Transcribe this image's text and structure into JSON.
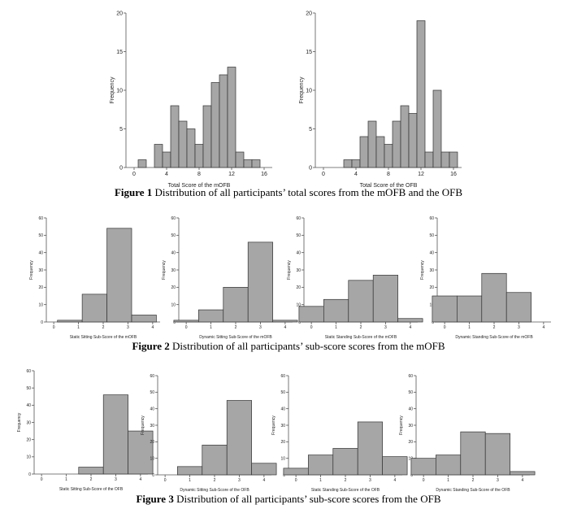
{
  "captions": {
    "fig1": {
      "label": "Figure 1",
      "text": " Distribution of all participants’ total scores from the mOFB and the OFB"
    },
    "fig2": {
      "label": "Figure 2",
      "text": " Distribution of all participants’ sub-score scores from the mOFB"
    },
    "fig3": {
      "label": "Figure 3",
      "text": " Distribution of all participants’ sub-score scores from the OFB"
    }
  },
  "colors": {
    "bar_fill": "#a6a6a6",
    "bar_stroke": "#333333",
    "axis": "#555555"
  },
  "chart_data": [
    {
      "type": "bar",
      "xlabel": "Total Score of the mOFB",
      "ylabel": "Frequency",
      "xlim": [
        -1,
        17
      ],
      "ylim": [
        0,
        20
      ],
      "xticks": [
        0,
        4,
        8,
        12,
        16
      ],
      "yticks": [
        0,
        5,
        10,
        15,
        20
      ],
      "bin_width": 1,
      "bins": [
        1,
        2,
        3,
        4,
        5,
        6,
        7,
        8,
        9,
        10,
        11,
        12,
        13,
        14,
        15
      ],
      "values": [
        1,
        0,
        3,
        2,
        8,
        6,
        5,
        3,
        8,
        11,
        12,
        13,
        2,
        1,
        1
      ]
    },
    {
      "type": "bar",
      "xlabel": "Total Score of the OFB",
      "ylabel": "Frequency",
      "xlim": [
        -1,
        17
      ],
      "ylim": [
        0,
        20
      ],
      "xticks": [
        0,
        4,
        8,
        12,
        16
      ],
      "yticks": [
        0,
        5,
        10,
        15,
        20
      ],
      "bin_width": 1,
      "bins": [
        3,
        4,
        5,
        6,
        7,
        8,
        9,
        10,
        11,
        12,
        13,
        14,
        15,
        16
      ],
      "values": [
        1,
        1,
        4,
        6,
        4,
        3,
        6,
        8,
        7,
        19,
        2,
        10,
        2,
        2
      ]
    },
    {
      "type": "bar",
      "xlabel": "Static Sitting Sub-Score of the mOFB",
      "ylabel": "Frequency",
      "xlim": [
        -0.3,
        4.3
      ],
      "ylim": [
        0,
        60
      ],
      "xticks": [
        0,
        1,
        2,
        3,
        4
      ],
      "yticks": [
        0,
        10,
        20,
        30,
        40,
        50,
        60
      ],
      "bin_width": 1,
      "bins": [
        0.65,
        1.65,
        2.65,
        3.65
      ],
      "values": [
        1,
        16,
        54,
        4
      ]
    },
    {
      "type": "bar",
      "xlabel": "Dynamic Sitting Sub-Score of the mOFB",
      "ylabel": "Frequency",
      "xlim": [
        -0.3,
        4.3
      ],
      "ylim": [
        0,
        60
      ],
      "xticks": [
        0,
        1,
        2,
        3,
        4
      ],
      "yticks": [
        0,
        10,
        20,
        30,
        40,
        50,
        60
      ],
      "bin_width": 1,
      "bins": [
        0,
        1,
        2,
        3,
        4
      ],
      "values": [
        1,
        7,
        20,
        46,
        1
      ]
    },
    {
      "type": "bar",
      "xlabel": "Static Standing Sub-Score of the mOFB",
      "ylabel": "Frequency",
      "xlim": [
        -0.3,
        4.3
      ],
      "ylim": [
        0,
        60
      ],
      "xticks": [
        0,
        1,
        2,
        3,
        4
      ],
      "yticks": [
        0,
        10,
        20,
        30,
        40,
        50,
        60
      ],
      "bin_width": 1,
      "bins": [
        0,
        1,
        2,
        3,
        4
      ],
      "values": [
        9,
        13,
        24,
        27,
        2
      ]
    },
    {
      "type": "bar",
      "xlabel": "Dynamic Standing Sub-Score of the mOFB",
      "ylabel": "Frequency",
      "xlim": [
        -0.3,
        4.3
      ],
      "ylim": [
        0,
        60
      ],
      "xticks": [
        0,
        1,
        2,
        3,
        4
      ],
      "yticks": [
        0,
        10,
        20,
        30,
        40,
        50,
        60
      ],
      "bin_width": 1,
      "bins": [
        0,
        1,
        2,
        3
      ],
      "values": [
        15,
        15,
        28,
        17
      ]
    },
    {
      "type": "bar",
      "xlabel": "Static Sitting Sub-Score of the OFB",
      "ylabel": "Frequency",
      "xlim": [
        -0.3,
        4.3
      ],
      "ylim": [
        0,
        60
      ],
      "xticks": [
        0,
        1,
        2,
        3,
        4
      ],
      "yticks": [
        0,
        10,
        20,
        30,
        40,
        50,
        60
      ],
      "bin_width": 1,
      "bins": [
        2,
        3,
        4
      ],
      "values": [
        4,
        46,
        25
      ]
    },
    {
      "type": "bar",
      "xlabel": "Dynamic Sitting Sub-Score of the OFB",
      "ylabel": "Frequency",
      "xlim": [
        -0.3,
        4.3
      ],
      "ylim": [
        0,
        60
      ],
      "xticks": [
        0,
        1,
        2,
        3,
        4
      ],
      "yticks": [
        0,
        10,
        20,
        30,
        40,
        50,
        60
      ],
      "bin_width": 1,
      "bins": [
        1,
        2,
        3,
        4
      ],
      "values": [
        5,
        18,
        45,
        7
      ]
    },
    {
      "type": "bar",
      "xlabel": "Static Standing Sub-Score of the OFB",
      "ylabel": "Frequency",
      "xlim": [
        -0.3,
        4.3
      ],
      "ylim": [
        0,
        60
      ],
      "xticks": [
        0,
        1,
        2,
        3,
        4
      ],
      "yticks": [
        0,
        10,
        20,
        30,
        40,
        50,
        60
      ],
      "bin_width": 1,
      "bins": [
        0,
        1,
        2,
        3,
        4
      ],
      "values": [
        4,
        12,
        16,
        32,
        11
      ]
    },
    {
      "type": "bar",
      "xlabel": "Dynamic Standing Sub-Score of the OFB",
      "ylabel": "Frequency",
      "xlim": [
        -0.3,
        4.3
      ],
      "ylim": [
        0,
        60
      ],
      "xticks": [
        0,
        1,
        2,
        3,
        4
      ],
      "yticks": [
        0,
        10,
        20,
        30,
        40,
        50,
        60
      ],
      "bin_width": 1,
      "bins": [
        0,
        1,
        2,
        3,
        4
      ],
      "values": [
        10,
        12,
        26,
        25,
        2
      ]
    }
  ]
}
